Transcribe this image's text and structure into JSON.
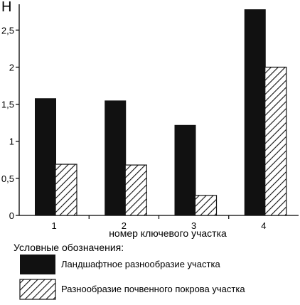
{
  "chart_data": {
    "type": "bar",
    "y_axis_title": "H",
    "xlabel": "номер ключевого участка",
    "categories": [
      "1",
      "2",
      "3",
      "4"
    ],
    "ylim": [
      0,
      2.8
    ],
    "yticks": [
      0,
      0.5,
      1,
      1.5,
      2,
      2.5
    ],
    "ytick_labels": [
      "0",
      "0,5",
      "1",
      "1,5",
      "2",
      "2,5"
    ],
    "series": [
      {
        "name": "Ландшафтное разнообразие участка",
        "fill": "solid",
        "color": "#111111",
        "values": [
          1.58,
          1.55,
          1.22,
          2.78
        ]
      },
      {
        "name": "Разнообразие почвенного покрова участка",
        "fill": "hatched",
        "color": "#111111",
        "values": [
          0.69,
          0.68,
          0.27,
          2.0
        ]
      }
    ],
    "legend_title": "Условные обозначения:"
  }
}
